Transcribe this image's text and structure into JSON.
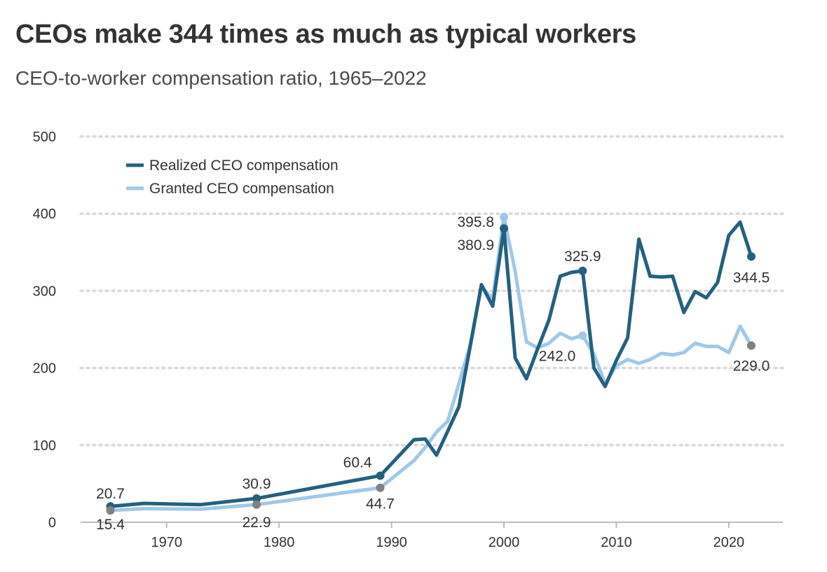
{
  "title": "CEOs make 344 times as much as typical workers",
  "subtitle": "CEO-to-worker compensation ratio, 1965–2022",
  "colors": {
    "realized": "#25607f",
    "granted": "#a0c8e8",
    "point_gray": "#808080",
    "grid": "#d9d9d9",
    "axis": "#bbbbbb",
    "text": "#333333"
  },
  "chart_data": {
    "type": "line",
    "title": "CEOs make 344 times as much as typical workers",
    "subtitle": "CEO-to-worker compensation ratio, 1965–2022",
    "xlabel": "",
    "ylabel": "",
    "xlim": [
      1961,
      2025
    ],
    "ylim": [
      0,
      500
    ],
    "x_ticks": [
      1970,
      1980,
      1990,
      2000,
      2010,
      2020
    ],
    "y_ticks": [
      0,
      100,
      200,
      300,
      400,
      500
    ],
    "grid": "horizontal dotted",
    "legend_position": "top-left",
    "series": [
      {
        "name": "Realized CEO compensation",
        "color": "#25607f",
        "x": [
          1965,
          1968,
          1973,
          1978,
          1989,
          1992,
          1993,
          1994,
          1995,
          1996,
          1997,
          1998,
          1999,
          2000,
          2001,
          2002,
          2003,
          2004,
          2005,
          2006,
          2007,
          2008,
          2009,
          2010,
          2011,
          2012,
          2013,
          2014,
          2015,
          2016,
          2017,
          2018,
          2019,
          2020,
          2021,
          2022
        ],
        "y": [
          20.7,
          24.5,
          22.9,
          30.9,
          60.4,
          107,
          108,
          87,
          118,
          150,
          228,
          308,
          280,
          380.9,
          213,
          186,
          225,
          262,
          319,
          324,
          325.9,
          200,
          176,
          210,
          239,
          367,
          319,
          318,
          319,
          272,
          299,
          291,
          311,
          372,
          389,
          344.5
        ]
      },
      {
        "name": "Granted CEO compensation",
        "color": "#a0c8e8",
        "x": [
          1965,
          1968,
          1973,
          1978,
          1989,
          1992,
          1993,
          1994,
          1995,
          1996,
          1997,
          1998,
          1999,
          2000,
          2001,
          2002,
          2003,
          2004,
          2005,
          2006,
          2007,
          2008,
          2009,
          2010,
          2011,
          2012,
          2013,
          2014,
          2015,
          2016,
          2017,
          2018,
          2019,
          2020,
          2021,
          2022
        ],
        "y": [
          15.4,
          17.7,
          17.0,
          22.9,
          44.7,
          80,
          97,
          117,
          131,
          180,
          230,
          305,
          290,
          395.8,
          325,
          234,
          226,
          232,
          245,
          238,
          242.0,
          218,
          180,
          203,
          211,
          206,
          211,
          219,
          217,
          220,
          232,
          228,
          228,
          220,
          254,
          229.0
        ]
      }
    ],
    "annotations": [
      {
        "series": "Realized CEO compensation",
        "x": 1965,
        "y": 20.7,
        "label": "20.7",
        "dot_color": "#25607f",
        "place": "above"
      },
      {
        "series": "Granted CEO compensation",
        "x": 1965,
        "y": 15.4,
        "label": "15.4",
        "dot_color": "#808080",
        "place": "below"
      },
      {
        "series": "Realized CEO compensation",
        "x": 1978,
        "y": 30.9,
        "label": "30.9",
        "dot_color": "#25607f",
        "place": "above"
      },
      {
        "series": "Granted CEO compensation",
        "x": 1978,
        "y": 22.9,
        "label": "22.9",
        "dot_color": "#808080",
        "place": "below"
      },
      {
        "series": "Realized CEO compensation",
        "x": 1989,
        "y": 60.4,
        "label": "60.4",
        "dot_color": "#25607f",
        "place": "above-left"
      },
      {
        "series": "Granted CEO compensation",
        "x": 1989,
        "y": 44.7,
        "label": "44.7",
        "dot_color": "#808080",
        "place": "below"
      },
      {
        "series": "Granted CEO compensation",
        "x": 2000,
        "y": 395.8,
        "label": "395.8",
        "dot_color": "#a0c8e8",
        "place": "left"
      },
      {
        "series": "Realized CEO compensation",
        "x": 2000,
        "y": 380.9,
        "label": "380.9",
        "dot_color": "#25607f",
        "place": "left-below"
      },
      {
        "series": "Realized CEO compensation",
        "x": 2007,
        "y": 325.9,
        "label": "325.9",
        "dot_color": "#25607f",
        "place": "above"
      },
      {
        "series": "Granted CEO compensation",
        "x": 2007,
        "y": 242.0,
        "label": "242.0",
        "dot_color": "#a0c8e8",
        "place": "below-left"
      },
      {
        "series": "Realized CEO compensation",
        "x": 2022,
        "y": 344.5,
        "label": "344.5",
        "dot_color": "#25607f",
        "place": "below"
      },
      {
        "series": "Granted CEO compensation",
        "x": 2022,
        "y": 229.0,
        "label": "229.0",
        "dot_color": "#808080",
        "place": "below"
      }
    ]
  }
}
